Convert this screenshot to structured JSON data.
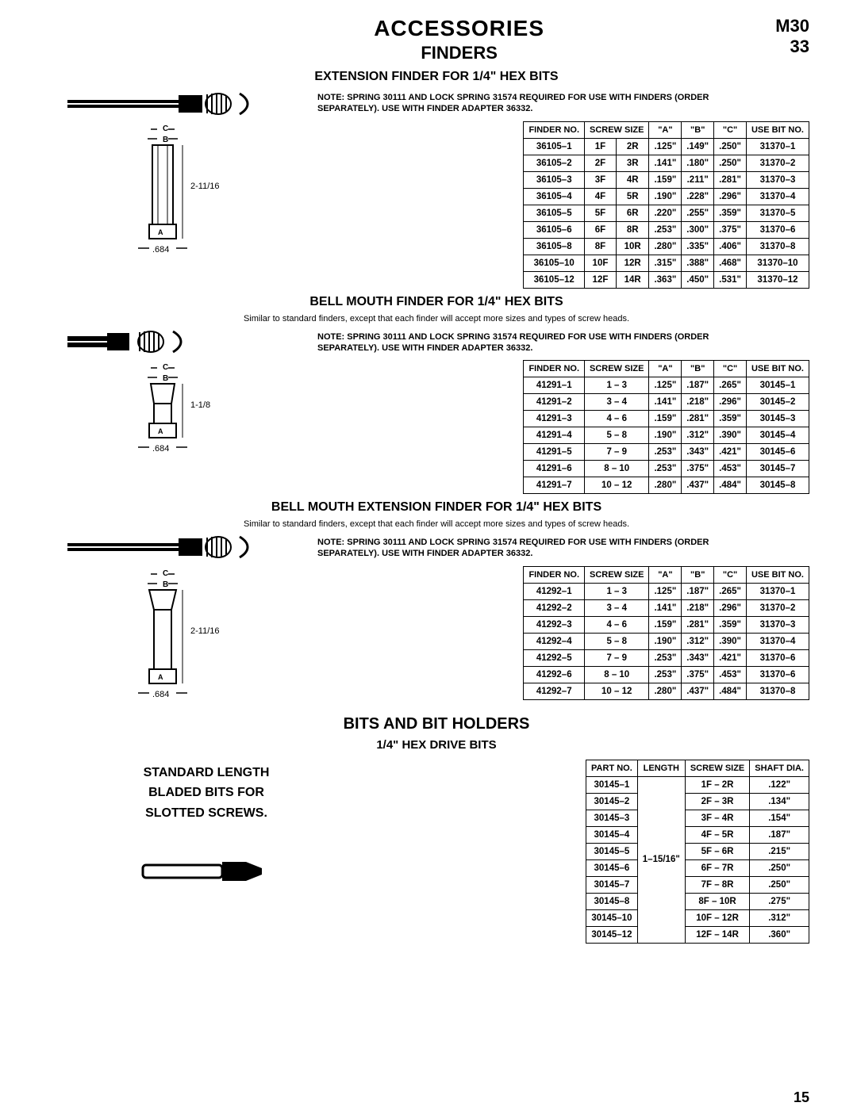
{
  "header": {
    "main_title": "ACCESSORIES",
    "sub_title": "FINDERS",
    "page_code_1": "M30",
    "page_code_2": "33"
  },
  "section1": {
    "title": "EXTENSION FINDER FOR 1/4\" HEX BITS",
    "note": "NOTE: SPRING 30111 AND LOCK SPRING 31574 REQUIRED FOR USE WITH FINDERS (ORDER SEPARATELY). USE WITH FINDER ADAPTER 36332.",
    "diagram": {
      "dim_c": "C",
      "dim_b": "B",
      "dim_a": "A",
      "height": "2-11/16",
      "base": ".684"
    },
    "table": {
      "columns": [
        "FINDER NO.",
        "SCREW SIZE",
        "",
        "\"A\"",
        "\"B\"",
        "\"C\"",
        "USE BIT NO."
      ],
      "rows": [
        [
          "36105–1",
          "1F",
          "2R",
          ".125\"",
          ".149\"",
          ".250\"",
          "31370–1"
        ],
        [
          "36105–2",
          "2F",
          "3R",
          ".141\"",
          ".180\"",
          ".250\"",
          "31370–2"
        ],
        [
          "36105–3",
          "3F",
          "4R",
          ".159\"",
          ".211\"",
          ".281\"",
          "31370–3"
        ],
        [
          "36105–4",
          "4F",
          "5R",
          ".190\"",
          ".228\"",
          ".296\"",
          "31370–4"
        ],
        [
          "36105–5",
          "5F",
          "6R",
          ".220\"",
          ".255\"",
          ".359\"",
          "31370–5"
        ],
        [
          "36105–6",
          "6F",
          "8R",
          ".253\"",
          ".300\"",
          ".375\"",
          "31370–6"
        ],
        [
          "36105–8",
          "8F",
          "10R",
          ".280\"",
          ".335\"",
          ".406\"",
          "31370–8"
        ],
        [
          "36105–10",
          "10F",
          "12R",
          ".315\"",
          ".388\"",
          ".468\"",
          "31370–10"
        ],
        [
          "36105–12",
          "12F",
          "14R",
          ".363\"",
          ".450\"",
          ".531\"",
          "31370–12"
        ]
      ]
    }
  },
  "section2": {
    "title": "BELL MOUTH FINDER FOR 1/4\" HEX BITS",
    "subtitle": "Similar to standard finders, except that each finder will accept more sizes and types of screw heads.",
    "note": "NOTE: SPRING 30111 AND LOCK SPRING 31574 REQUIRED FOR USE WITH FINDERS (ORDER SEPARATELY). USE WITH FINDER ADAPTER 36332.",
    "diagram": {
      "height": "1-1/8",
      "base": ".684"
    },
    "table": {
      "columns": [
        "FINDER NO.",
        "SCREW SIZE",
        "\"A\"",
        "\"B\"",
        "\"C\"",
        "USE BIT NO."
      ],
      "rows": [
        [
          "41291–1",
          "1 – 3",
          ".125\"",
          ".187\"",
          ".265\"",
          "30145–1"
        ],
        [
          "41291–2",
          "3 – 4",
          ".141\"",
          ".218\"",
          ".296\"",
          "30145–2"
        ],
        [
          "41291–3",
          "4 – 6",
          ".159\"",
          ".281\"",
          ".359\"",
          "30145–3"
        ],
        [
          "41291–4",
          "5 – 8",
          ".190\"",
          ".312\"",
          ".390\"",
          "30145–4"
        ],
        [
          "41291–5",
          "7 – 9",
          ".253\"",
          ".343\"",
          ".421\"",
          "30145–6"
        ],
        [
          "41291–6",
          "8 – 10",
          ".253\"",
          ".375\"",
          ".453\"",
          "30145–7"
        ],
        [
          "41291–7",
          "10 – 12",
          ".280\"",
          ".437\"",
          ".484\"",
          "30145–8"
        ]
      ]
    }
  },
  "section3": {
    "title": "BELL MOUTH EXTENSION FINDER FOR 1/4\" HEX BITS",
    "subtitle": "Similar to standard finders, except that each finder will accept more sizes and types of screw heads.",
    "note": "NOTE: SPRING 30111 AND LOCK SPRING 31574 REQUIRED FOR USE WITH FINDERS (ORDER SEPARATELY). USE WITH FINDER ADAPTER 36332.",
    "diagram": {
      "height": "2-11/16",
      "base": ".684"
    },
    "table": {
      "columns": [
        "FINDER NO.",
        "SCREW SIZE",
        "\"A\"",
        "\"B\"",
        "\"C\"",
        "USE BIT NO."
      ],
      "rows": [
        [
          "41292–1",
          "1 – 3",
          ".125\"",
          ".187\"",
          ".265\"",
          "31370–1"
        ],
        [
          "41292–2",
          "3 – 4",
          ".141\"",
          ".218\"",
          ".296\"",
          "31370–2"
        ],
        [
          "41292–3",
          "4 – 6",
          ".159\"",
          ".281\"",
          ".359\"",
          "31370–3"
        ],
        [
          "41292–4",
          "5 – 8",
          ".190\"",
          ".312\"",
          ".390\"",
          "31370–4"
        ],
        [
          "41292–5",
          "7 – 9",
          ".253\"",
          ".343\"",
          ".421\"",
          "31370–6"
        ],
        [
          "41292–6",
          "8 – 10",
          ".253\"",
          ".375\"",
          ".453\"",
          "31370–6"
        ],
        [
          "41292–7",
          "10 – 12",
          ".280\"",
          ".437\"",
          ".484\"",
          "31370–8"
        ]
      ]
    }
  },
  "bits": {
    "heading": "BITS AND BIT HOLDERS",
    "sub": "1/4\" HEX DRIVE BITS",
    "label_1": "STANDARD LENGTH",
    "label_2": "BLADED BITS FOR",
    "label_3": "SLOTTED SCREWS.",
    "table": {
      "columns": [
        "PART NO.",
        "LENGTH",
        "SCREW SIZE",
        "SHAFT DIA."
      ],
      "length_value": "1–15/16\"",
      "rows": [
        [
          "30145–1",
          "1F – 2R",
          ".122\""
        ],
        [
          "30145–2",
          "2F – 3R",
          ".134\""
        ],
        [
          "30145–3",
          "3F – 4R",
          ".154\""
        ],
        [
          "30145–4",
          "4F – 5R",
          ".187\""
        ],
        [
          "30145–5",
          "5F – 6R",
          ".215\""
        ],
        [
          "30145–6",
          "6F – 7R",
          ".250\""
        ],
        [
          "30145–7",
          "7F – 8R",
          ".250\""
        ],
        [
          "30145–8",
          "8F – 10R",
          ".275\""
        ],
        [
          "30145–10",
          "10F – 12R",
          ".312\""
        ],
        [
          "30145–12",
          "12F – 14R",
          ".360\""
        ]
      ]
    }
  },
  "page_num": "15"
}
